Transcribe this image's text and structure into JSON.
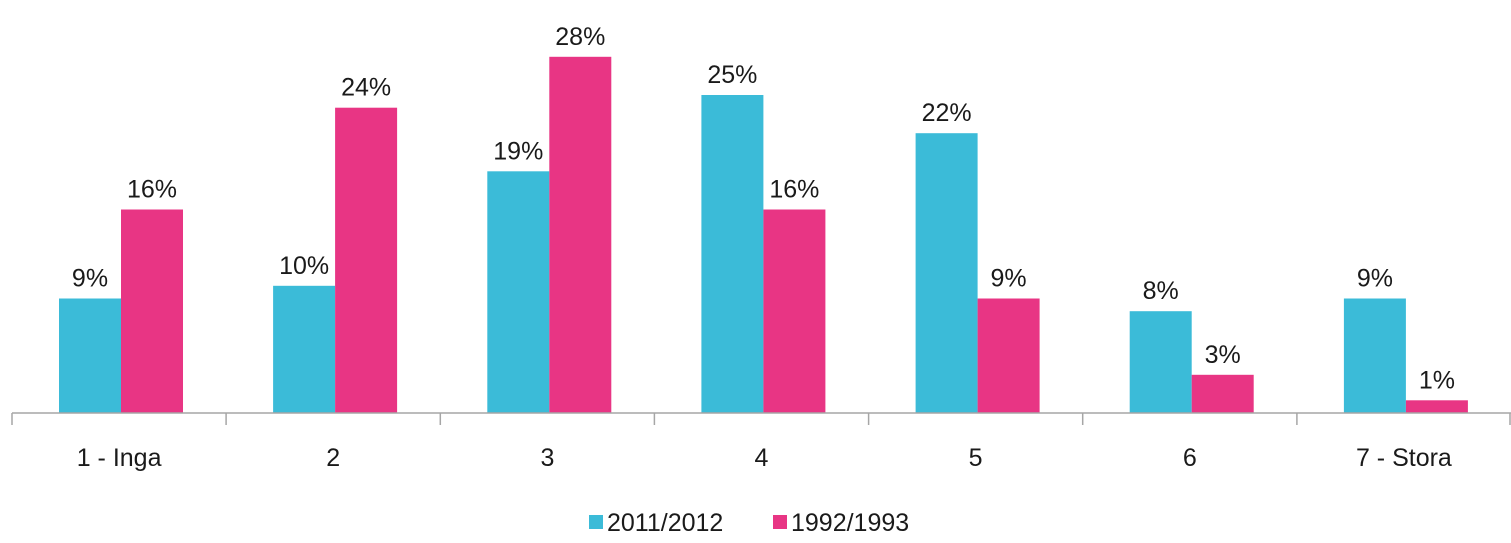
{
  "chart_data": {
    "type": "bar",
    "categories": [
      "1 - Inga",
      "2",
      "3",
      "4",
      "5",
      "6",
      "7 - Stora"
    ],
    "series": [
      {
        "name": "2011/2012",
        "color": "#3bbbd8",
        "values": [
          9,
          10,
          19,
          25,
          22,
          8,
          9
        ],
        "labels": [
          "9%",
          "10%",
          "19%",
          "25%",
          "22%",
          "8%",
          "9%"
        ]
      },
      {
        "name": "1992/1993",
        "color": "#e83584",
        "values": [
          16,
          24,
          28,
          16,
          9,
          3,
          1
        ],
        "labels": [
          "16%",
          "24%",
          "28%",
          "16%",
          "9%",
          "3%",
          "1%"
        ]
      }
    ],
    "unit": "%",
    "ylim": [
      0,
      30
    ],
    "grid": false,
    "legend": "bottom-center",
    "title": "",
    "xlabel": "",
    "ylabel": ""
  }
}
